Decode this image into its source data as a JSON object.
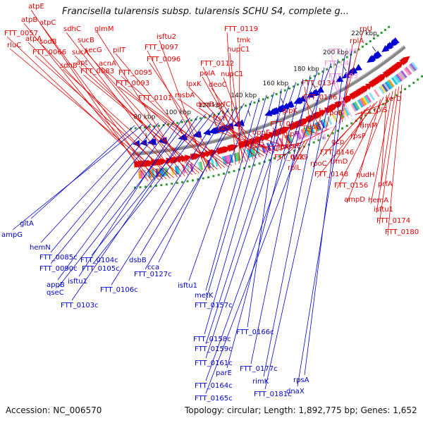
{
  "title": "Francisella tularensis subsp. tularensis SCHU S4, complete g...",
  "footer": {
    "accession": "Accession: NC_006570",
    "topology": "Topology: circular; Length: 1,892,775 bp; Genes: 1,652"
  },
  "colors": {
    "forward": "#e00000",
    "reverse": "#0000d0",
    "faded": "#f08ce0",
    "backbone": "#888888",
    "green_tick": "#2e9b2e"
  },
  "ticks": [
    "80 kbp",
    "100 kbp",
    "120 kbp",
    "140 kbp",
    "160 kbp",
    "180 kbp",
    "200 kbp",
    "220 kbp"
  ],
  "forward_genes": [
    "atpE",
    "atpB",
    "atpC",
    "FTT_0057",
    "atpA",
    "rluC",
    "sodB",
    "FTT_0066",
    "sdhC",
    "sdhB",
    "sucB",
    "glmM",
    "sucA",
    "secG",
    "apt",
    "FTT_0083",
    "isftu2",
    "FTT_0097",
    "pilT",
    "acnA",
    "FTT_0096",
    "FTT_0095",
    "FTT_0093",
    "FTT_0101",
    "FTT_0119",
    "tmk",
    "nupC1",
    "FTT_0112",
    "polA",
    "nupC1",
    "lpxK",
    "deoC",
    "msbA",
    "deoB",
    "prfC",
    "ftsY",
    "uvrD",
    "glpK",
    "FTT_0128",
    "oppF",
    "glpF",
    "oppD",
    "glpA",
    "FTT_0129",
    "rplK",
    "rplL",
    "FTT_0134",
    "tufA",
    "nusG",
    "FTT_0136",
    "rpoB",
    "secE",
    "FTT_0106",
    "rpoC",
    "rpU",
    "rplA",
    "FTT_105",
    "FTT_04",
    "FTT_103",
    "xerD",
    "rplS",
    "rimM",
    "rpsP",
    "gcp",
    "FTT_0146",
    "trmD",
    "FTT_0148",
    "nudH",
    "FTT_0156",
    "prfA",
    "ampD",
    "hemA",
    "isftu1",
    "FTT_0174",
    "FTT_0180"
  ],
  "faded_genes": [
    "FTT_105",
    "FTT_04",
    "FTT_103",
    "FTT_0106"
  ],
  "reverse_genes": [
    "gltA",
    "ampG",
    "hemN",
    "FTT_0085c",
    "FTT_0090c",
    "appB",
    "isftu1",
    "qseC",
    "FTT_0103c",
    "FTT_0104c",
    "FTT_0105c",
    "FTT_0106c",
    "dsbB",
    "cca",
    "FTT_0127c",
    "isftu1",
    "metK",
    "FTT_0157c",
    "FTT_0158c",
    "FTT_0166c",
    "FTT_0159c",
    "FTT_0161c",
    "parE",
    "FTT_0177c",
    "FTT_0164c",
    "rimK",
    "FTT_0165c",
    "FTT_0181c",
    "rpsA",
    "dnaX"
  ]
}
